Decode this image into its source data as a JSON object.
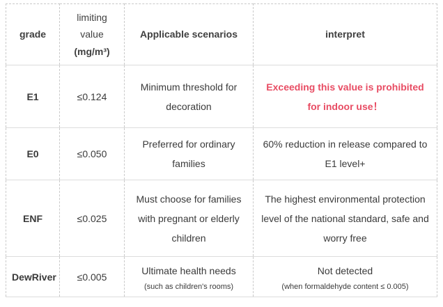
{
  "table": {
    "headers": {
      "grade": "grade",
      "limit_line1": "limiting value",
      "limit_line2": "(mg/m³)",
      "scenarios": "Applicable scenarios",
      "interpret": "interpret"
    },
    "rows": [
      {
        "grade": "E1",
        "limit": "≤0.124",
        "scenario": "Minimum threshold for decoration",
        "interpret": "Exceeding this value is prohibited for indoor use！"
      },
      {
        "grade": "E0",
        "limit": "≤0.050",
        "scenario": "Preferred for ordinary families",
        "interpret": "60% reduction in release compared to E1 level+"
      },
      {
        "grade": "ENF",
        "limit": "≤0.025",
        "scenario": "Must choose for families with pregnant or elderly children",
        "interpret": "The highest environmental protection level of the national standard, safe and worry free"
      },
      {
        "grade": "DewRiver",
        "limit": "≤0.005",
        "scenario": "Ultimate health needs",
        "scenario_note": "(such as children's rooms)",
        "interpret": "Not detected",
        "interpret_note": "(when formaldehyde content ≤ 0.005)"
      }
    ],
    "colors": {
      "warning_text": "#e84c63",
      "header_text": "#404040",
      "body_text": "#3a3a3a",
      "border_dashed": "#c9c9c9",
      "border_solid": "#dcdcdc"
    }
  }
}
